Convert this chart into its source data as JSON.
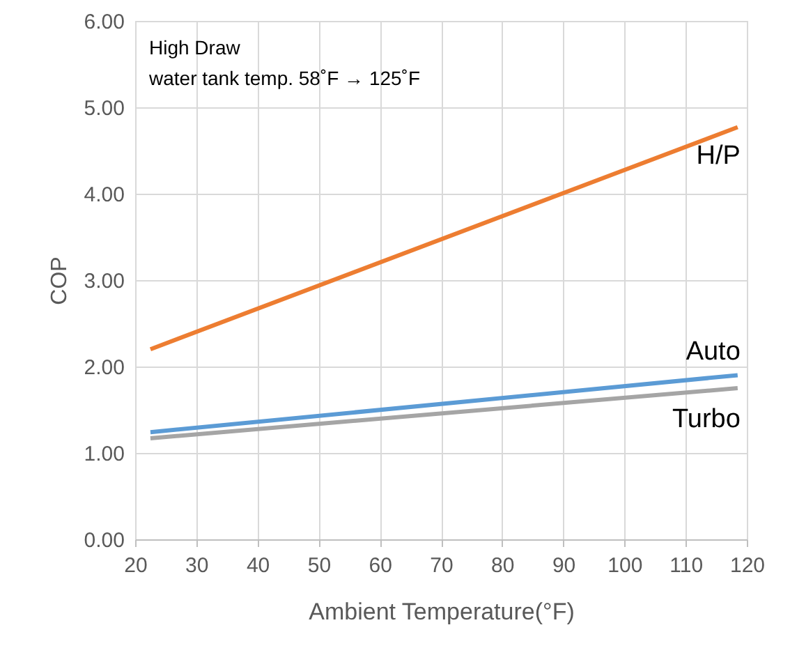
{
  "chart_data": {
    "type": "line",
    "xlabel": "Ambient Temperature(°F)",
    "ylabel": "COP",
    "annotations": [
      "High Draw",
      "water tank temp. 58˚F  → 125˚F"
    ],
    "x": [
      22.5,
      118.5
    ],
    "series": [
      {
        "name": "H/P",
        "color": "#ed7d31",
        "values": [
          2.2,
          4.77
        ]
      },
      {
        "name": "Auto",
        "color": "#5b9bd5",
        "values": [
          1.24,
          1.9
        ]
      },
      {
        "name": "Turbo",
        "color": "#a5a5a5",
        "values": [
          1.17,
          1.75
        ]
      }
    ],
    "xlim": [
      20,
      120
    ],
    "xticks": [
      20,
      30,
      40,
      50,
      60,
      70,
      80,
      90,
      100,
      110,
      120
    ],
    "ylim": [
      0,
      6
    ],
    "yticks": [
      {
        "value": 0,
        "label": "0.00"
      },
      {
        "value": 1,
        "label": "1.00"
      },
      {
        "value": 2,
        "label": "2.00"
      },
      {
        "value": 3,
        "label": "3.00"
      },
      {
        "value": 4,
        "label": "4.00"
      },
      {
        "value": 5,
        "label": "5.00"
      },
      {
        "value": 6,
        "label": "6.00"
      }
    ],
    "grid": true,
    "marker": "none",
    "line_style": "solid"
  }
}
